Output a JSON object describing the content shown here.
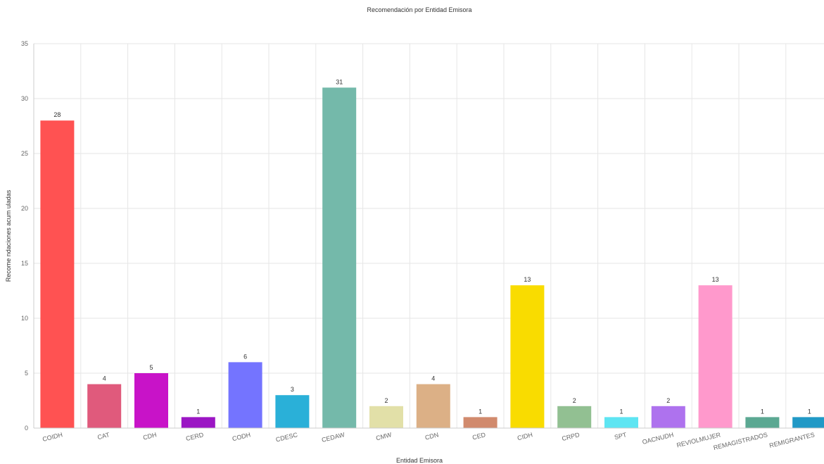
{
  "chart_data": {
    "type": "bar",
    "title": "Recomendación por Entidad Emisora",
    "xlabel": "Entidad Emisora",
    "ylabel": "Recome ndaciones acum uladas",
    "ylim": [
      0,
      35
    ],
    "yticks": [
      0,
      5,
      10,
      15,
      20,
      25,
      30,
      35
    ],
    "grid": true,
    "legend": "none",
    "categories": [
      "COIDH",
      "CAT",
      "CDH",
      "CERD",
      "CODH",
      "CDESC",
      "CEDAW",
      "CMW",
      "CDN",
      "CED",
      "CIDH",
      "CRPD",
      "SPT",
      "OACNUDH",
      "REVIOLMUJER",
      "REMAGISTRADOS",
      "REMIGRANTES"
    ],
    "values": [
      28,
      4,
      5,
      1,
      6,
      3,
      31,
      2,
      4,
      1,
      13,
      2,
      1,
      2,
      13,
      1,
      1
    ],
    "colors": [
      "#ff5252",
      "#e05a7c",
      "#c813c8",
      "#9b16c4",
      "#7474ff",
      "#2ab0d8",
      "#74b9aa",
      "#e2e0a8",
      "#dcb086",
      "#d18a6d",
      "#f9dc00",
      "#92c092",
      "#5ee5f2",
      "#ae72ee",
      "#ff99cc",
      "#5ba892",
      "#2199c6"
    ]
  }
}
